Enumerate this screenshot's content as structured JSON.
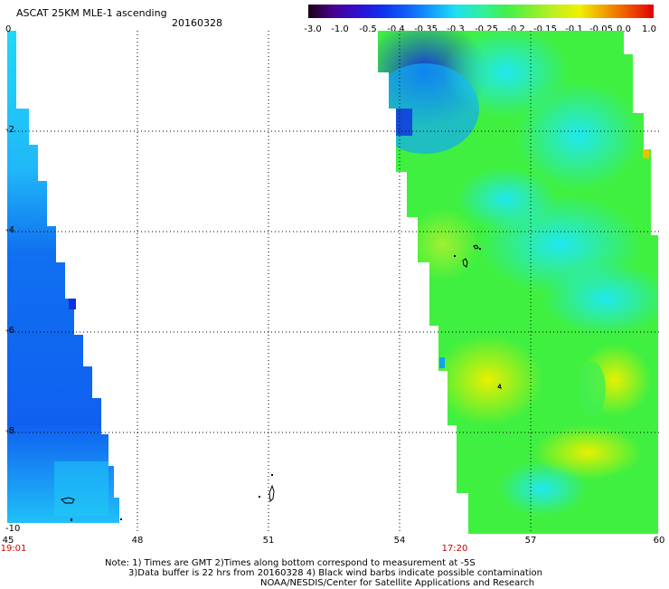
{
  "header": {
    "title": "ASCAT 25KM MLE-1 ascending",
    "date": "20160328"
  },
  "colorbar": {
    "labels": [
      "-3.0",
      "-1.0",
      "-0.5",
      "-0.4",
      "-0.35",
      "-0.3",
      "-0.25",
      "-0.2",
      "-0.15",
      "-0.1",
      "-0.05",
      "0.0",
      "1.0"
    ],
    "colors": [
      "#1a0010",
      "#4a0090",
      "#3010d0",
      "#1030f0",
      "#1060f8",
      "#10a0ff",
      "#20e0f0",
      "#30f0a0",
      "#40f050",
      "#80f030",
      "#c0f020",
      "#f0f000",
      "#f0a000",
      "#f05000",
      "#e00000"
    ]
  },
  "map": {
    "y_labels": [
      "0",
      "-2",
      "-4",
      "-6",
      "-8",
      "-10"
    ],
    "x_labels": [
      "45",
      "48",
      "51",
      "54",
      "57",
      "60"
    ],
    "pass_times": [
      "19:01",
      "17:20"
    ]
  },
  "notes": {
    "line1": "Note: 1) Times are GMT 2)Times along bottom correspond to measurement at -5S",
    "line2": "3)Data buffer is 22 hrs from 20160328 4) Black wind barbs indicate possible contamination",
    "line3": "NOAA/NESDIS/Center for Satellite Applications and Research"
  },
  "palette": {
    "deep_blue": "#1060f0",
    "cyan": "#20d8f8",
    "green": "#40f040",
    "yellow_green": "#a0f020",
    "yellow": "#e8f000",
    "orange": "#f0a000"
  }
}
